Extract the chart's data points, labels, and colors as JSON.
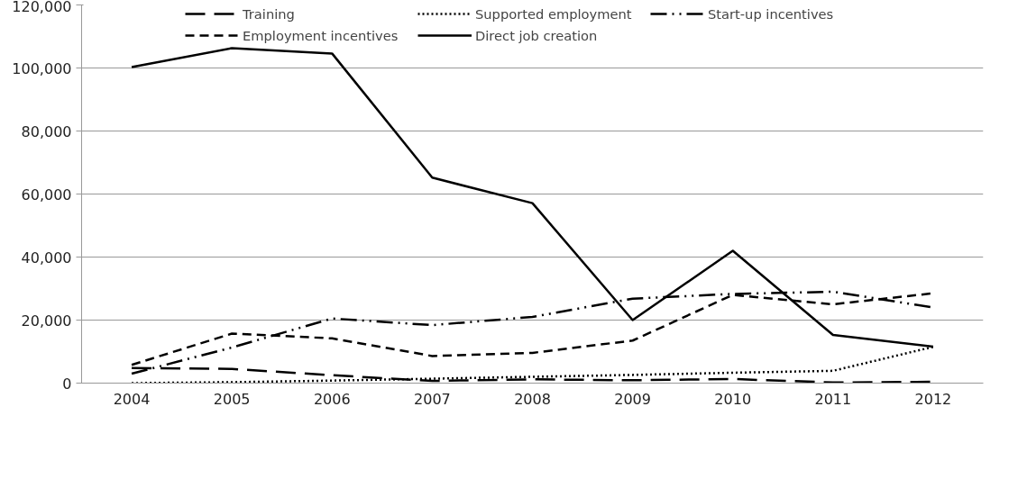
{
  "chart_data": {
    "type": "line",
    "categories": [
      "2004",
      "2005",
      "2006",
      "2007",
      "2008",
      "2009",
      "2010",
      "2011",
      "2012"
    ],
    "series": [
      {
        "name": "Training",
        "color": "#000000",
        "line_style": "longdash",
        "values": [
          4800,
          4500,
          2500,
          700,
          1200,
          900,
          1300,
          200,
          400
        ]
      },
      {
        "name": "Employment incentives",
        "color": "#000000",
        "line_style": "dashed",
        "values": [
          5800,
          15700,
          14200,
          8600,
          9600,
          13500,
          28000,
          25000,
          28500
        ]
      },
      {
        "name": "Supported employment",
        "color": "#000000",
        "line_style": "dotted",
        "values": [
          0,
          300,
          800,
          1400,
          2000,
          2600,
          3300,
          3900,
          11500
        ]
      },
      {
        "name": "Direct job creation",
        "color": "#000000",
        "line_style": "solid",
        "values": [
          100300,
          106300,
          104600,
          65200,
          57100,
          20000,
          42000,
          15300,
          11600
        ]
      },
      {
        "name": "Start-up incentives",
        "color": "#000000",
        "line_style": "dashdot",
        "values": [
          3000,
          11300,
          20500,
          18400,
          21000,
          26800,
          28300,
          29000,
          24000
        ]
      }
    ],
    "ylim": [
      0,
      120000
    ],
    "yticks": [
      {
        "value": 0,
        "label": "0"
      },
      {
        "value": 20000,
        "label": "20,000"
      },
      {
        "value": 40000,
        "label": "40,000"
      },
      {
        "value": 60000,
        "label": "60,000"
      },
      {
        "value": 80000,
        "label": "80,000"
      },
      {
        "value": 100000,
        "label": "100,000"
      },
      {
        "value": 120000,
        "label": "120,000"
      }
    ],
    "grid": "y",
    "legend": "top",
    "marker": "none"
  }
}
